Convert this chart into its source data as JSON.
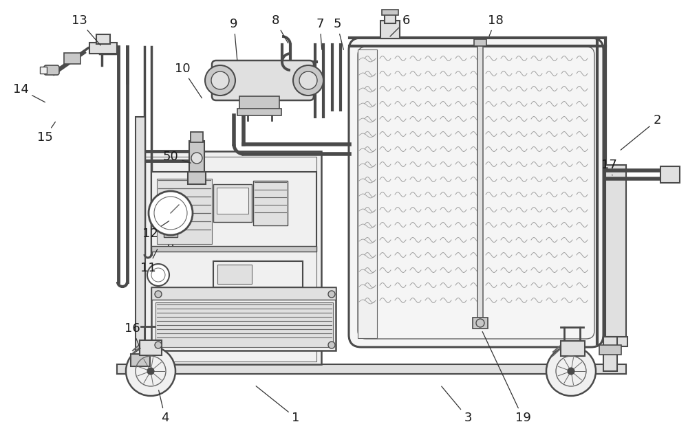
{
  "bg_color": "#ffffff",
  "lc": "#4a4a4a",
  "lc2": "#666666",
  "fc_light": "#f0f0f0",
  "fc_mid": "#e0e0e0",
  "fc_dark": "#c8c8c8",
  "fc_tank": "#f5f5f5",
  "annotations": [
    [
      "1",
      430,
      608,
      370,
      560
    ],
    [
      "2",
      955,
      175,
      900,
      220
    ],
    [
      "3",
      680,
      608,
      640,
      560
    ],
    [
      "4",
      240,
      608,
      230,
      565
    ],
    [
      "5",
      490,
      35,
      500,
      75
    ],
    [
      "6",
      590,
      30,
      565,
      55
    ],
    [
      "7",
      465,
      35,
      468,
      75
    ],
    [
      "8",
      400,
      30,
      420,
      65
    ],
    [
      "9",
      340,
      35,
      345,
      90
    ],
    [
      "10",
      265,
      100,
      295,
      145
    ],
    [
      "11",
      215,
      390,
      230,
      360
    ],
    [
      "12",
      218,
      340,
      248,
      320
    ],
    [
      "13",
      115,
      30,
      148,
      68
    ],
    [
      "14",
      30,
      130,
      68,
      150
    ],
    [
      "15",
      65,
      200,
      82,
      175
    ],
    [
      "16",
      192,
      478,
      205,
      510
    ],
    [
      "17",
      885,
      240,
      890,
      255
    ],
    [
      "18",
      720,
      30,
      710,
      55
    ],
    [
      "19",
      760,
      608,
      700,
      480
    ],
    [
      "50",
      248,
      228,
      280,
      238
    ]
  ]
}
